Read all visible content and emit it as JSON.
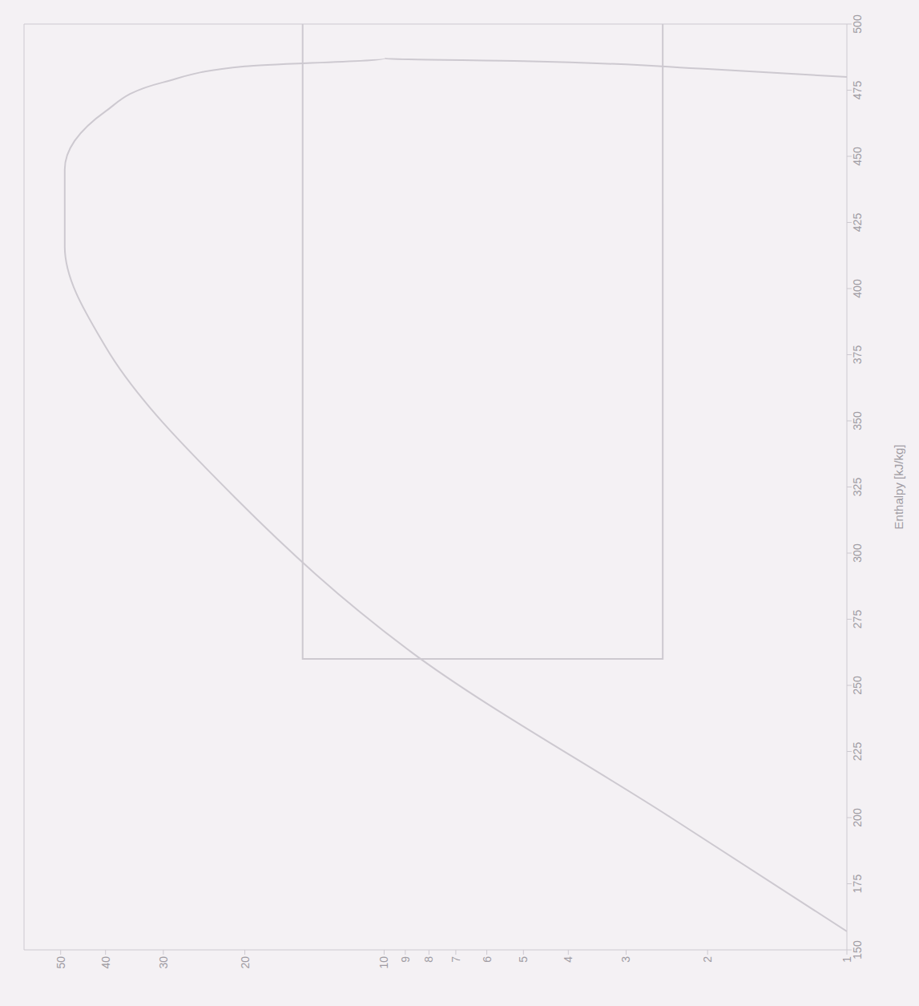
{
  "chart_data": {
    "type": "line",
    "x_label": "Enthalpy [kJ/kg]",
    "log": "y",
    "grid": false,
    "xlim": [
      150,
      500
    ],
    "xticks": [
      150,
      175,
      200,
      225,
      250,
      275,
      300,
      325,
      350,
      375,
      400,
      425,
      450,
      475,
      500
    ],
    "ylim": [
      1,
      60
    ],
    "yticks": [
      1,
      2,
      3,
      4,
      5,
      6,
      7,
      8,
      9,
      10,
      20,
      30,
      40,
      50
    ],
    "series": [
      {
        "color": "#cdc9d0",
        "x": [
          157,
          200,
          263,
          321,
          378,
          416,
          445,
          467,
          478,
          484,
          487,
          486,
          483,
          480
        ],
        "values": [
          1,
          2.4,
          8.8,
          21,
          40,
          49,
          49,
          40,
          30,
          20,
          10,
          5,
          2,
          1
        ]
      },
      {
        "color": "#cdc9d0",
        "x": [
          500,
          260,
          260,
          500
        ],
        "values": [
          15,
          15,
          2.5,
          2.5
        ]
      }
    ]
  }
}
